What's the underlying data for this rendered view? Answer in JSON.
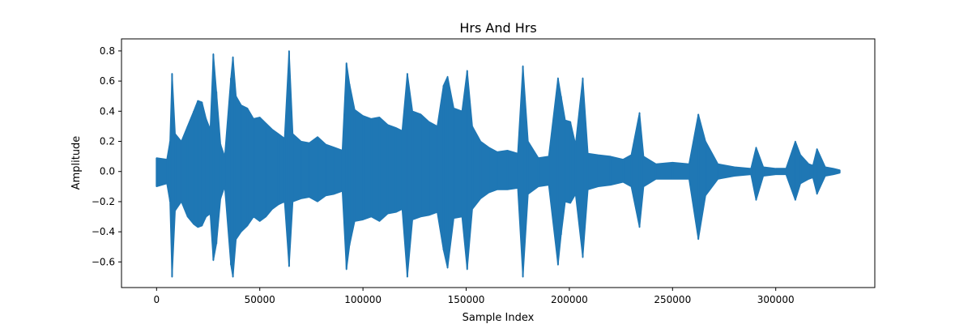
{
  "chart_data": {
    "type": "line",
    "title": "Hrs And Hrs",
    "xlabel": "Sample Index",
    "ylabel": "Amplitude",
    "xlim": [
      -17000,
      348000
    ],
    "ylim": [
      -0.77,
      0.88
    ],
    "xticks": [
      0,
      50000,
      100000,
      150000,
      200000,
      250000,
      300000
    ],
    "xtick_labels": [
      "0",
      "50000",
      "100000",
      "150000",
      "200000",
      "250000",
      "300000"
    ],
    "yticks": [
      -0.6,
      -0.4,
      -0.2,
      0.0,
      0.2,
      0.4,
      0.6,
      0.8
    ],
    "ytick_labels": [
      "−0.6",
      "−0.4",
      "−0.2",
      "0.0",
      "0.2",
      "0.4",
      "0.6",
      "0.8"
    ],
    "grid": false,
    "line_color": "#1f77b4",
    "series": [
      {
        "x": [
          0,
          5000,
          6500,
          7500,
          9000,
          12000,
          15000,
          18000,
          20000,
          22000,
          24000,
          26000,
          27500,
          29000,
          31000,
          33000,
          36000,
          37000,
          38500,
          41000,
          44000,
          47000,
          50000,
          53000,
          56000,
          59000,
          62000,
          64200,
          66000,
          70000,
          74000,
          78000,
          82000,
          86000,
          90000,
          92000,
          93500,
          96000,
          100000,
          104000,
          108000,
          112000,
          116000,
          119000,
          121500,
          124000,
          128000,
          132000,
          136000,
          139000,
          141000,
          144000,
          148000,
          150500,
          153000,
          157000,
          161000,
          165000,
          170000,
          175000,
          177500,
          180000,
          185000,
          190000,
          194500,
          196000,
          198000,
          200500,
          203000,
          206500,
          209000,
          214000,
          220000,
          226000,
          230000,
          234000,
          236000,
          242000,
          250000,
          258000,
          262500,
          266000,
          272000,
          280000,
          288000,
          290500,
          294000,
          300000,
          305000,
          309500,
          312000,
          316000,
          318000,
          320000,
          324000,
          328000,
          331000
        ],
        "upper": [
          0.09,
          0.08,
          0.2,
          0.65,
          0.25,
          0.2,
          0.3,
          0.4,
          0.47,
          0.46,
          0.35,
          0.28,
          0.78,
          0.53,
          0.18,
          0.1,
          0.62,
          0.76,
          0.5,
          0.44,
          0.42,
          0.35,
          0.36,
          0.32,
          0.28,
          0.25,
          0.22,
          0.8,
          0.25,
          0.2,
          0.19,
          0.23,
          0.18,
          0.16,
          0.14,
          0.72,
          0.58,
          0.41,
          0.37,
          0.35,
          0.36,
          0.31,
          0.29,
          0.27,
          0.65,
          0.4,
          0.38,
          0.33,
          0.3,
          0.57,
          0.63,
          0.42,
          0.4,
          0.67,
          0.3,
          0.2,
          0.16,
          0.13,
          0.14,
          0.12,
          0.7,
          0.2,
          0.09,
          0.1,
          0.62,
          0.5,
          0.34,
          0.33,
          0.18,
          0.62,
          0.12,
          0.11,
          0.1,
          0.08,
          0.11,
          0.39,
          0.1,
          0.05,
          0.06,
          0.05,
          0.38,
          0.2,
          0.05,
          0.03,
          0.02,
          0.16,
          0.03,
          0.02,
          0.02,
          0.2,
          0.11,
          0.05,
          0.04,
          0.15,
          0.03,
          0.02,
          0.01
        ],
        "lower": [
          -0.1,
          -0.08,
          -0.2,
          -0.7,
          -0.26,
          -0.2,
          -0.3,
          -0.35,
          -0.37,
          -0.36,
          -0.3,
          -0.28,
          -0.59,
          -0.48,
          -0.18,
          -0.1,
          -0.62,
          -0.7,
          -0.45,
          -0.4,
          -0.36,
          -0.3,
          -0.33,
          -0.3,
          -0.25,
          -0.22,
          -0.2,
          -0.63,
          -0.2,
          -0.18,
          -0.17,
          -0.2,
          -0.16,
          -0.15,
          -0.13,
          -0.65,
          -0.49,
          -0.33,
          -0.32,
          -0.3,
          -0.33,
          -0.28,
          -0.27,
          -0.25,
          -0.7,
          -0.32,
          -0.3,
          -0.29,
          -0.27,
          -0.52,
          -0.64,
          -0.31,
          -0.3,
          -0.65,
          -0.25,
          -0.18,
          -0.14,
          -0.12,
          -0.12,
          -0.11,
          -0.7,
          -0.15,
          -0.1,
          -0.09,
          -0.62,
          -0.42,
          -0.2,
          -0.21,
          -0.15,
          -0.57,
          -0.12,
          -0.1,
          -0.09,
          -0.07,
          -0.1,
          -0.37,
          -0.1,
          -0.05,
          -0.05,
          -0.05,
          -0.45,
          -0.16,
          -0.05,
          -0.03,
          -0.02,
          -0.19,
          -0.03,
          -0.02,
          -0.02,
          -0.19,
          -0.08,
          -0.05,
          -0.04,
          -0.15,
          -0.03,
          -0.02,
          -0.01
        ]
      }
    ]
  }
}
